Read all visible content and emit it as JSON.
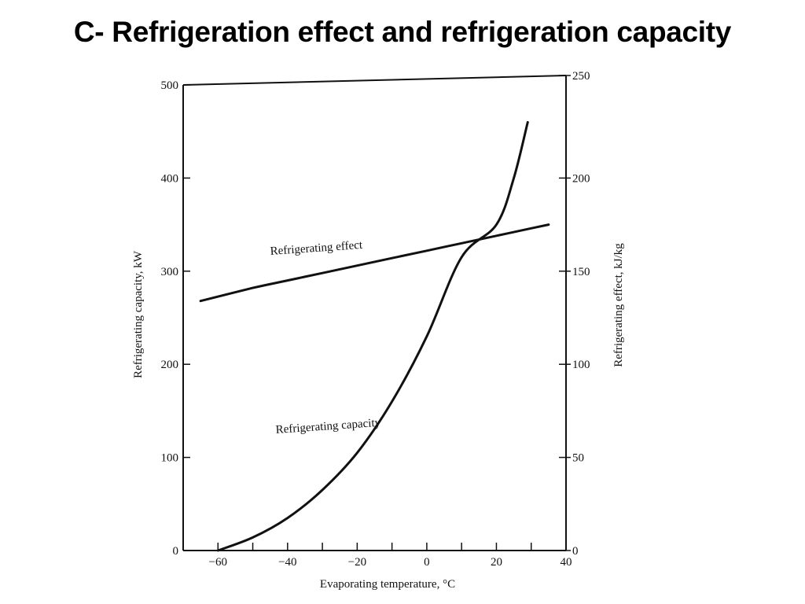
{
  "slide": {
    "title": "C- Refrigeration effect and refrigeration capacity"
  },
  "chart_data": {
    "type": "line",
    "title": "",
    "xlabel": "Evaporating temperature, °C",
    "ylabel_left": "Refrigerating capacity, kW",
    "ylabel_right": "Refrigerating effect, kJ/kg",
    "xlim": [
      -70,
      40
    ],
    "ylim_left": [
      0,
      500
    ],
    "ylim_right": [
      0,
      250
    ],
    "x_ticks": [
      -60,
      -40,
      -20,
      0,
      20,
      40
    ],
    "y_ticks_left": [
      0,
      100,
      200,
      300,
      400,
      500
    ],
    "y_ticks_right": [
      0,
      50,
      100,
      150,
      200,
      250
    ],
    "grid": false,
    "series": [
      {
        "name": "Refrigerating effect",
        "axis": "right",
        "x": [
          -65,
          -50,
          -40,
          -30,
          -20,
          -10,
          0,
          10,
          20,
          30,
          35
        ],
        "y": [
          134,
          141,
          145,
          149,
          153,
          157,
          161,
          165,
          169,
          173,
          175
        ]
      },
      {
        "name": "Refrigerating capacity",
        "axis": "left",
        "x": [
          -60,
          -50,
          -40,
          -30,
          -20,
          -10,
          0,
          10,
          20,
          25,
          29
        ],
        "y": [
          0,
          14,
          35,
          65,
          105,
          160,
          230,
          315,
          350,
          400,
          460
        ]
      }
    ]
  }
}
